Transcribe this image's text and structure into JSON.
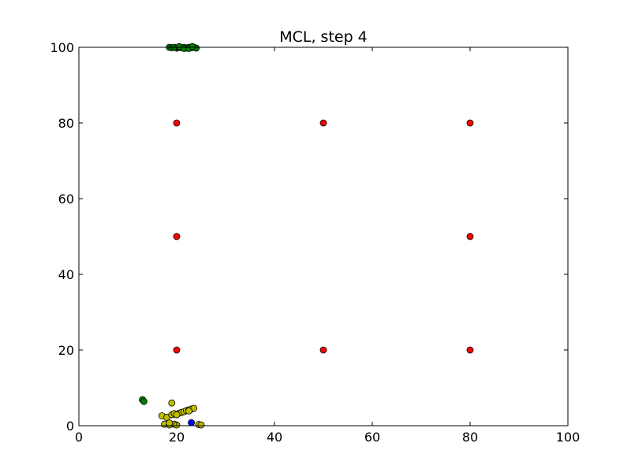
{
  "chart_data": {
    "type": "scatter",
    "title": "MCL, step 4",
    "xlabel": "",
    "ylabel": "",
    "xlim": [
      0,
      100
    ],
    "ylim": [
      0,
      100
    ],
    "xticks": [
      0,
      20,
      40,
      60,
      80,
      100
    ],
    "yticks": [
      0,
      20,
      40,
      60,
      80,
      100
    ],
    "grid": false,
    "series": [
      {
        "color": "#ff0000",
        "points": [
          [
            20,
            80
          ],
          [
            50,
            80
          ],
          [
            80,
            80
          ],
          [
            20,
            50
          ],
          [
            80,
            50
          ],
          [
            20,
            20
          ],
          [
            50,
            20
          ],
          [
            80,
            20
          ]
        ]
      },
      {
        "color": "#bfbf00",
        "points": [
          [
            19,
            6
          ],
          [
            17,
            2.6
          ],
          [
            18,
            2.2
          ],
          [
            19,
            2.9
          ],
          [
            19.5,
            3.2
          ],
          [
            20.5,
            3.3
          ],
          [
            21,
            3.5
          ],
          [
            21.5,
            3.7
          ],
          [
            22,
            4
          ],
          [
            22.5,
            4.2
          ],
          [
            23,
            4.4
          ],
          [
            23.5,
            4.6
          ],
          [
            17.5,
            0.4
          ],
          [
            18.5,
            0.2
          ],
          [
            19.5,
            0.4
          ],
          [
            20,
            0.2
          ],
          [
            18.5,
            0.7
          ],
          [
            24.5,
            0.3
          ],
          [
            25,
            0.2
          ],
          [
            22.5,
            3.9
          ],
          [
            20,
            2.9
          ]
        ]
      },
      {
        "color": "#008000",
        "points": [
          [
            13,
            6.9
          ],
          [
            13.3,
            6.4
          ],
          [
            18.5,
            100
          ],
          [
            19,
            99.9
          ],
          [
            19.5,
            100
          ],
          [
            20,
            99.8
          ],
          [
            20.5,
            100
          ],
          [
            21,
            99.9
          ],
          [
            21.5,
            100
          ],
          [
            22,
            99.8
          ],
          [
            22.5,
            100
          ],
          [
            23,
            99.9
          ],
          [
            23.5,
            100
          ],
          [
            24,
            99.8
          ],
          [
            20.5,
            100.2
          ],
          [
            21.5,
            99.7
          ],
          [
            22.5,
            99.7
          ],
          [
            23.2,
            100.2
          ]
        ]
      },
      {
        "color": "#0000ff",
        "points": [
          [
            23,
            0.8
          ]
        ]
      }
    ]
  }
}
